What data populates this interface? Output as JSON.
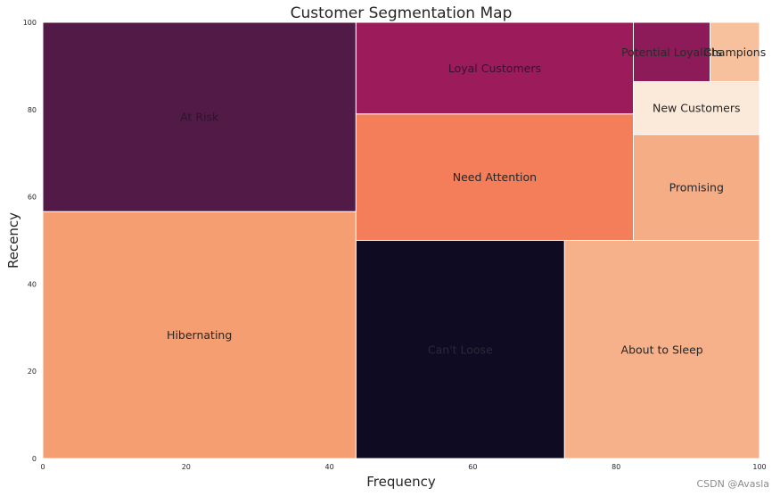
{
  "chart_data": {
    "type": "treemap",
    "title": "Customer Segmentation Map",
    "xlabel": "Frequency",
    "ylabel": "Recency",
    "xlim": [
      0,
      100
    ],
    "ylim": [
      0,
      100
    ],
    "xticks": [
      "0",
      "20",
      "40",
      "60",
      "80",
      "100"
    ],
    "yticks": [
      "0",
      "20",
      "40",
      "60",
      "80",
      "100"
    ],
    "grid": false,
    "segments": [
      {
        "label": "Hibernating",
        "x0": 0,
        "x1": 43.7,
        "y0": 0,
        "y1": 56.6,
        "color": "#f59e72",
        "text_color": "#262626"
      },
      {
        "label": "At Risk",
        "x0": 0,
        "x1": 43.7,
        "y0": 56.6,
        "y1": 100,
        "color": "#521b47",
        "text_color": "#2a1428"
      },
      {
        "label": "Can't Loose",
        "x0": 43.7,
        "x1": 72.8,
        "y0": 0,
        "y1": 50,
        "color": "#0e0b22",
        "text_color": "#2a2a38"
      },
      {
        "label": "About to Sleep",
        "x0": 72.8,
        "x1": 100,
        "y0": 0,
        "y1": 50,
        "color": "#f6b18a",
        "text_color": "#262626"
      },
      {
        "label": "Need Attention",
        "x0": 43.7,
        "x1": 82.4,
        "y0": 50,
        "y1": 79,
        "color": "#f37e59",
        "text_color": "#262626"
      },
      {
        "label": "Loyal Customers",
        "x0": 43.7,
        "x1": 82.4,
        "y0": 79,
        "y1": 100,
        "color": "#9c1b5b",
        "text_color": "#3a1030"
      },
      {
        "label": "Promising",
        "x0": 82.4,
        "x1": 100,
        "y0": 50,
        "y1": 74.3,
        "color": "#f5ad86",
        "text_color": "#262626"
      },
      {
        "label": "New Customers",
        "x0": 82.4,
        "x1": 100,
        "y0": 74.3,
        "y1": 86.4,
        "color": "#fbe9da",
        "text_color": "#262626"
      },
      {
        "label": "Potential Loyalists",
        "x0": 82.4,
        "x1": 93.1,
        "y0": 86.4,
        "y1": 100,
        "color": "#8d1a59",
        "text_color": "#2a2a2a"
      },
      {
        "label": "Champions",
        "x0": 93.1,
        "x1": 100,
        "y0": 86.4,
        "y1": 100,
        "color": "#f7c19d",
        "text_color": "#262626"
      }
    ]
  },
  "watermark": "CSDN @Avasla"
}
